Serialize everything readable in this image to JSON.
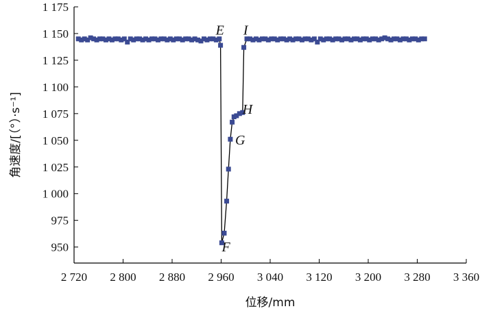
{
  "chart_data": {
    "type": "scatter",
    "title": "",
    "xlabel": "位移/mm",
    "ylabel": "角速度/[（°）·s⁻¹]",
    "xlim": [
      2720,
      3360
    ],
    "ylim": [
      935,
      1175
    ],
    "x_ticks": [
      2720,
      2800,
      2880,
      2960,
      3040,
      3120,
      3200,
      3280,
      3360
    ],
    "x_tick_labels": [
      "2 720",
      "2 800",
      "2 880",
      "2 960",
      "3 040",
      "3 120",
      "3 200",
      "3 280",
      "3 360"
    ],
    "y_ticks": [
      950,
      975,
      1000,
      1025,
      1050,
      1075,
      1100,
      1125,
      1150,
      1175
    ],
    "y_tick_labels": [
      "950",
      "975",
      "1 000",
      "1 025",
      "1 050",
      "1 075",
      "1 100",
      "1 125",
      "1 150",
      "1 175"
    ],
    "grid": false,
    "marker_color": "#3b4a93",
    "line_color": "#000000",
    "series": [
      {
        "x": [
          2727,
          2732,
          2737,
          2742,
          2747,
          2752,
          2757,
          2762,
          2767,
          2772,
          2777,
          2782,
          2787,
          2792,
          2797,
          2802,
          2807,
          2812,
          2817,
          2822,
          2827,
          2832,
          2837,
          2842,
          2847,
          2852,
          2857,
          2862,
          2867,
          2872,
          2877,
          2882,
          2887,
          2892,
          2897,
          2902,
          2907,
          2912,
          2917,
          2922,
          2927,
          2932,
          2937,
          2942,
          2947,
          2952,
          2957,
          2959,
          2961,
          2965,
          2969,
          2972,
          2975,
          2978,
          2981,
          2985,
          2990,
          2995,
          2997,
          3002,
          3007,
          3012,
          3017,
          3022,
          3027,
          3032,
          3037,
          3042,
          3047,
          3052,
          3057,
          3062,
          3067,
          3072,
          3077,
          3082,
          3087,
          3092,
          3097,
          3102,
          3107,
          3112,
          3117,
          3122,
          3127,
          3132,
          3137,
          3142,
          3147,
          3152,
          3157,
          3162,
          3167,
          3172,
          3177,
          3182,
          3187,
          3192,
          3197,
          3202,
          3207,
          3212,
          3217,
          3222,
          3227,
          3232,
          3237,
          3242,
          3247,
          3252,
          3257,
          3262,
          3267,
          3272,
          3277,
          3282,
          3287,
          3292
        ],
        "y": [
          1145,
          1144,
          1145,
          1144,
          1146,
          1145,
          1144,
          1145,
          1145,
          1144,
          1145,
          1144,
          1145,
          1145,
          1144,
          1145,
          1142,
          1145,
          1144,
          1145,
          1145,
          1144,
          1145,
          1144,
          1145,
          1145,
          1144,
          1145,
          1145,
          1144,
          1145,
          1144,
          1145,
          1145,
          1144,
          1145,
          1145,
          1144,
          1145,
          1144,
          1143,
          1145,
          1144,
          1145,
          1145,
          1144,
          1145,
          1139,
          954,
          963,
          993,
          1023,
          1051,
          1067,
          1072,
          1073,
          1075,
          1076,
          1137,
          1145,
          1145,
          1144,
          1145,
          1144,
          1145,
          1145,
          1144,
          1145,
          1145,
          1144,
          1145,
          1145,
          1144,
          1145,
          1144,
          1145,
          1145,
          1144,
          1145,
          1145,
          1144,
          1145,
          1142,
          1145,
          1144,
          1145,
          1145,
          1144,
          1145,
          1145,
          1144,
          1145,
          1145,
          1144,
          1145,
          1145,
          1144,
          1145,
          1145,
          1144,
          1145,
          1145,
          1144,
          1145,
          1146,
          1145,
          1144,
          1145,
          1145,
          1144,
          1145,
          1145,
          1144,
          1145,
          1145,
          1144,
          1145,
          1145
        ]
      }
    ],
    "annotations": [
      {
        "label": "E",
        "x": 2958,
        "y": 1149
      },
      {
        "label": "I",
        "x": 3000,
        "y": 1149
      },
      {
        "label": "H",
        "x": 3003,
        "y": 1075
      },
      {
        "label": "G",
        "x": 2991,
        "y": 1046
      },
      {
        "label": "F",
        "x": 2968,
        "y": 946
      }
    ]
  }
}
